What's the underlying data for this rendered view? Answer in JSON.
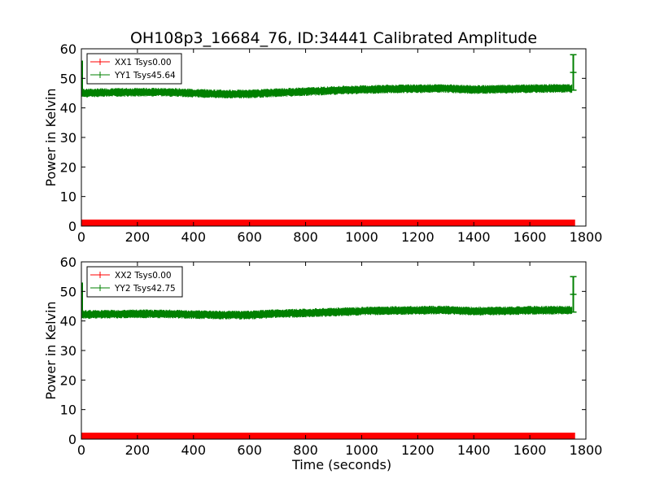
{
  "figure_title": "OH108p3_16684_76, ID:34441 Calibrated Amplitude",
  "colors": {
    "xx": "#ff0000",
    "yy": "#008000",
    "axis": "#000000"
  },
  "chart_data": [
    {
      "type": "line",
      "title": "OH108p3_16684_76, ID:34441 Calibrated Amplitude",
      "xlabel": "",
      "ylabel": "Power in Kelvin",
      "xlim": [
        0,
        1800
      ],
      "ylim": [
        0,
        60
      ],
      "xticks": [
        "0",
        "200",
        "400",
        "600",
        "800",
        "1000",
        "1200",
        "1400",
        "1600",
        "1800"
      ],
      "yticks": [
        "0",
        "10",
        "20",
        "30",
        "40",
        "50",
        "60"
      ],
      "legend_position": "top-left",
      "grid": false,
      "series": [
        {
          "name": "XX1 Tsys0.00",
          "color": "#ff0000",
          "error_bars": true,
          "x": [
            0,
            1760
          ],
          "y": [
            0.8,
            0.8
          ],
          "band": [
            0,
            2.2
          ]
        },
        {
          "name": "YY1 Tsys45.64",
          "color": "#008000",
          "error_bars": true,
          "x": [
            0,
            100,
            200,
            300,
            400,
            500,
            600,
            700,
            800,
            900,
            1000,
            1100,
            1200,
            1300,
            1400,
            1500,
            1600,
            1700,
            1750
          ],
          "y": [
            45.0,
            45.2,
            45.3,
            45.3,
            45.0,
            44.7,
            44.7,
            45.2,
            45.5,
            45.9,
            46.2,
            46.4,
            46.5,
            46.6,
            46.2,
            46.3,
            46.5,
            46.6,
            46.5
          ],
          "spike_x": 1755,
          "spike_range": [
            46,
            58
          ],
          "start_range": [
            44,
            56
          ]
        }
      ]
    },
    {
      "type": "line",
      "title": "",
      "xlabel": "Time (seconds)",
      "ylabel": "Power in Kelvin",
      "xlim": [
        0,
        1800
      ],
      "ylim": [
        0,
        60
      ],
      "xticks": [
        "0",
        "200",
        "400",
        "600",
        "800",
        "1000",
        "1200",
        "1400",
        "1600",
        "1800"
      ],
      "yticks": [
        "0",
        "10",
        "20",
        "30",
        "40",
        "50",
        "60"
      ],
      "legend_position": "top-left",
      "grid": false,
      "series": [
        {
          "name": "XX2 Tsys0.00",
          "color": "#ff0000",
          "error_bars": true,
          "x": [
            0,
            1760
          ],
          "y": [
            0.8,
            0.8
          ],
          "band": [
            0,
            2.2
          ]
        },
        {
          "name": "YY2 Tsys42.75",
          "color": "#008000",
          "error_bars": true,
          "x": [
            0,
            100,
            200,
            300,
            400,
            500,
            600,
            700,
            800,
            900,
            1000,
            1100,
            1200,
            1300,
            1400,
            1500,
            1600,
            1700,
            1750
          ],
          "y": [
            42.2,
            42.3,
            42.4,
            42.4,
            42.2,
            42.0,
            42.0,
            42.5,
            42.7,
            43.0,
            43.3,
            43.5,
            43.6,
            43.7,
            43.3,
            43.4,
            43.6,
            43.7,
            43.6
          ],
          "spike_x": 1755,
          "spike_range": [
            43,
            55
          ],
          "start_range": [
            41,
            53
          ]
        }
      ]
    }
  ]
}
